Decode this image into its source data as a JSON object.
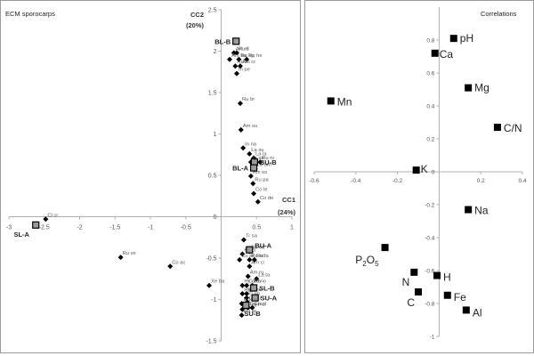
{
  "chart_data": [
    {
      "type": "scatter",
      "title": "ECM sporocarps",
      "xlabel": "CC1\n(24%)",
      "ylabel": "CC2\n(20%)",
      "xlim": [
        -3,
        1
      ],
      "ylim": [
        -1.5,
        2.5
      ],
      "xticks": [
        -3,
        -2.5,
        -2,
        -1.5,
        -1,
        -0.5,
        0,
        0.5,
        1
      ],
      "yticks": [
        -1.5,
        -1,
        -0.5,
        0,
        0.5,
        1,
        1.5,
        2,
        2.5
      ],
      "species": [
        {
          "label": "Cl cr",
          "x": -2.48,
          "y": -0.03
        },
        {
          "label": "Ru ve",
          "x": -1.42,
          "y": -0.49
        },
        {
          "label": "Co ac",
          "x": -0.72,
          "y": -0.6
        },
        {
          "label": "Xe ba",
          "x": -0.17,
          "y": -0.83
        },
        {
          "label": "Am el",
          "x": 0.18,
          "y": 1.98
        },
        {
          "label": "Ru li",
          "x": 0.22,
          "y": 1.98
        },
        {
          "label": "Am ba",
          "x": 0.12,
          "y": 1.9
        },
        {
          "label": "Ru cy",
          "x": 0.25,
          "y": 1.9
        },
        {
          "label": "Ru he",
          "x": 0.36,
          "y": 1.9
        },
        {
          "label": "Ru ri",
          "x": 0.2,
          "y": 1.82
        },
        {
          "label": "Am cr",
          "x": 0.27,
          "y": 1.82
        },
        {
          "label": "In pe",
          "x": 0.22,
          "y": 1.73
        },
        {
          "label": "Ru br",
          "x": 0.27,
          "y": 1.37
        },
        {
          "label": "Am su",
          "x": 0.28,
          "y": 1.05
        },
        {
          "label": "In na",
          "x": 0.31,
          "y": 0.83
        },
        {
          "label": "La su",
          "x": 0.4,
          "y": 0.76
        },
        {
          "label": "La la",
          "x": 0.46,
          "y": 0.71
        },
        {
          "label": "In as",
          "x": 0.42,
          "y": 0.66
        },
        {
          "label": "Ru ni",
          "x": 0.55,
          "y": 0.66
        },
        {
          "label": "La am",
          "x": 0.48,
          "y": 0.58
        },
        {
          "label": "Am so",
          "x": 0.42,
          "y": 0.49
        },
        {
          "label": "Ru pa",
          "x": 0.45,
          "y": 0.4
        },
        {
          "label": "Co le",
          "x": 0.46,
          "y": 0.28
        },
        {
          "label": "Co de",
          "x": 0.52,
          "y": 0.18
        },
        {
          "label": "Tr sa",
          "x": 0.32,
          "y": -0.28
        },
        {
          "label": "Bo ed",
          "x": 0.4,
          "y": -0.42
        },
        {
          "label": "Ke ci",
          "x": 0.3,
          "y": -0.45
        },
        {
          "label": "Co ar",
          "x": 0.26,
          "y": -0.52
        },
        {
          "label": "Ru oc",
          "x": 0.4,
          "y": -0.52
        },
        {
          "label": "Ru fa",
          "x": 0.47,
          "y": -0.52
        },
        {
          "label": "Am ci",
          "x": 0.4,
          "y": -0.6
        },
        {
          "label": "Am ru",
          "x": 0.38,
          "y": -0.72
        },
        {
          "label": "La ta",
          "x": 0.5,
          "y": -0.75
        },
        {
          "label": "Hy ol",
          "x": 0.3,
          "y": -0.83
        },
        {
          "label": "Co ev",
          "x": 0.36,
          "y": -0.83
        },
        {
          "label": "Ru io",
          "x": 0.44,
          "y": -0.83
        },
        {
          "label": "Hy pu",
          "x": 0.3,
          "y": -0.93
        },
        {
          "label": "El mu",
          "x": 0.36,
          "y": -0.93
        },
        {
          "label": "Tr im",
          "x": 0.36,
          "y": -0.98
        },
        {
          "label": "In la",
          "x": 0.29,
          "y": -1.05
        },
        {
          "label": "Ca ci",
          "x": 0.37,
          "y": -1.03
        },
        {
          "label": "La ca",
          "x": 0.3,
          "y": -1.12
        },
        {
          "label": "Ru pu",
          "x": 0.38,
          "y": -1.1
        },
        {
          "label": "Go gl",
          "x": 0.44,
          "y": -1.1
        },
        {
          "label": "Ru ac",
          "x": 0.29,
          "y": -1.19
        }
      ],
      "sites": [
        {
          "label": "BL-B",
          "x": 0.21,
          "y": 2.12
        },
        {
          "label": "BU-B",
          "x": 0.47,
          "y": 0.66
        },
        {
          "label": "BL-A",
          "x": 0.46,
          "y": 0.59
        },
        {
          "label": "SL-A",
          "x": -2.62,
          "y": -0.1
        },
        {
          "label": "BU-A",
          "x": 0.4,
          "y": -0.4
        },
        {
          "label": "SL-B",
          "x": 0.46,
          "y": -0.86
        },
        {
          "label": "SU-A",
          "x": 0.48,
          "y": -0.98
        },
        {
          "label": "SU-B",
          "x": 0.35,
          "y": -1.07
        }
      ]
    },
    {
      "type": "scatter",
      "title": "Correlations",
      "xlim": [
        -0.6,
        0.4
      ],
      "ylim": [
        -1,
        1
      ],
      "xticks": [
        -0.6,
        -0.4,
        -0.2,
        0,
        0.2,
        0.4
      ],
      "yticks": [
        -1,
        -0.8,
        -0.6,
        -0.4,
        -0.2,
        0,
        0.2,
        0.4,
        0.6,
        0.8
      ],
      "points": [
        {
          "label": "pH",
          "x": 0.07,
          "y": 0.81
        },
        {
          "label": "Ca",
          "x": -0.02,
          "y": 0.72
        },
        {
          "label": "Mg",
          "x": 0.14,
          "y": 0.51
        },
        {
          "label": "Mn",
          "x": -0.52,
          "y": 0.43
        },
        {
          "label": "C/N",
          "x": 0.28,
          "y": 0.27
        },
        {
          "label": "K",
          "x": -0.11,
          "y": 0.01
        },
        {
          "label": "Na",
          "x": 0.14,
          "y": -0.23
        },
        {
          "label": "P2O5",
          "x": -0.26,
          "y": -0.46
        },
        {
          "label": "H",
          "x": -0.01,
          "y": -0.63
        },
        {
          "label": "N",
          "x": -0.12,
          "y": -0.61
        },
        {
          "label": "C",
          "x": -0.1,
          "y": -0.73
        },
        {
          "label": "Fe",
          "x": 0.04,
          "y": -0.75
        },
        {
          "label": "Al",
          "x": 0.13,
          "y": -0.84
        }
      ]
    }
  ],
  "colors": {
    "axis": "#b0b0b0",
    "marker": "#000000",
    "text": "#555555",
    "site_fill": "#9a9a9a"
  }
}
